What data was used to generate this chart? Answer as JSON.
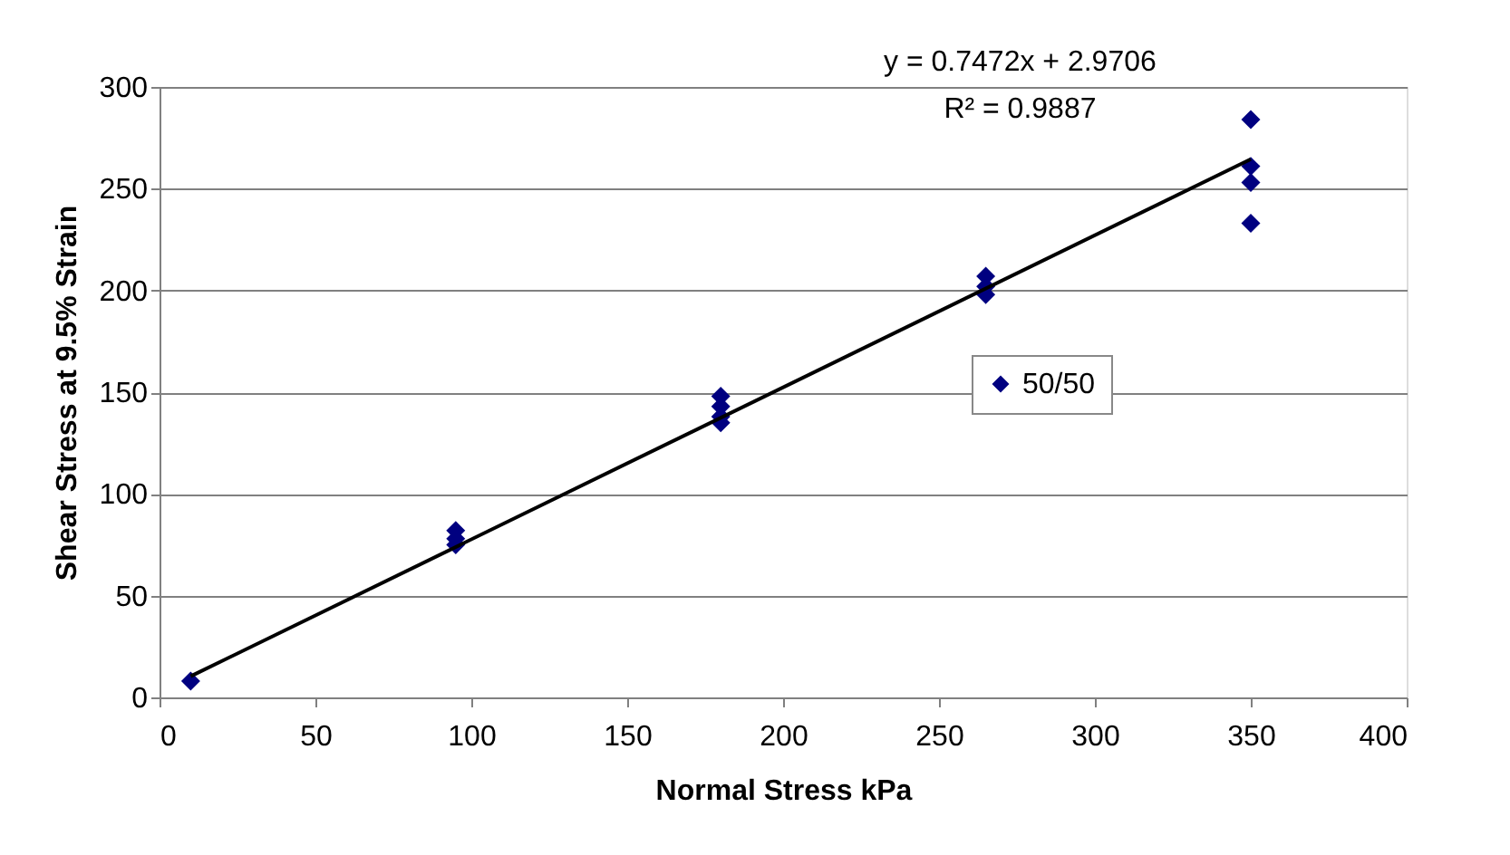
{
  "chart_data": {
    "type": "scatter",
    "xlabel": "Normal Stress kPa",
    "ylabel": "Shear Stress at 9.5% Strain",
    "annotations": [
      "y = 0.7472x + 2.9706",
      "R² = 0.9887"
    ],
    "series": [
      {
        "name": "50/50",
        "color": "#000080",
        "marker": "diamond",
        "x": [
          10,
          95,
          95,
          95,
          180,
          180,
          180,
          180,
          265,
          265,
          265,
          350,
          350,
          350,
          350
        ],
        "values": [
          8,
          75,
          78,
          82,
          135,
          138,
          143,
          148,
          198,
          202,
          207,
          233,
          253,
          261,
          284
        ]
      },
      {
        "type": "line",
        "color": "#000000",
        "x": [
          10,
          350
        ],
        "values": [
          10.4,
          264.5
        ]
      }
    ],
    "xlim": [
      0,
      400
    ],
    "xticks": [
      0,
      50,
      100,
      150,
      200,
      250,
      300,
      350,
      400
    ],
    "ylim": [
      0,
      300
    ],
    "yticks": [
      0,
      50,
      100,
      150,
      200,
      250,
      300
    ],
    "grid": "y",
    "legend": "right"
  }
}
